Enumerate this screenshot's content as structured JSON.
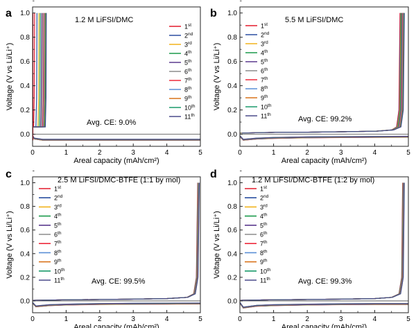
{
  "chart_data": [
    {
      "type": "line",
      "panel_label": "a",
      "annotation": "1.2 M LiFSI/DMC",
      "ce_text": "Avg. CE: 9.0%",
      "xlabel": "Areal capacity (mAh/cm²)",
      "ylabel": "Voltage (V vs Li/Li⁺)",
      "xlim": [
        0,
        5
      ],
      "ylim": [
        -0.1,
        1.05
      ],
      "xticks": [
        "0",
        "1",
        "2",
        "3",
        "4",
        "5"
      ],
      "yticks": [
        "0.0",
        "0.2",
        "0.4",
        "0.6",
        "0.8",
        "1.0"
      ],
      "legend_position": "right",
      "grid": false,
      "discharge_curve": [
        [
          0,
          -0.02
        ],
        [
          0.05,
          -0.04
        ],
        [
          0.3,
          -0.05
        ],
        [
          1,
          -0.05
        ],
        [
          2,
          -0.05
        ],
        [
          3,
          -0.05
        ],
        [
          4,
          -0.05
        ],
        [
          5,
          -0.05
        ]
      ],
      "plateau_voltage": 0.06,
      "plateau_end_capacities": [
        0.03,
        0.1,
        0.16,
        0.2,
        0.24,
        0.27,
        0.3,
        0.32,
        0.34,
        0.36,
        0.38
      ]
    },
    {
      "type": "line",
      "panel_label": "b",
      "annotation": "5.5 M LiFSI/DMC",
      "ce_text": "Avg. CE: 99.2%",
      "xlabel": "Areal capacity (mAh/cm²)",
      "ylabel": "Voltage (V vs Li/Li⁺)",
      "xlim": [
        0,
        5
      ],
      "ylim": [
        -0.1,
        1.05
      ],
      "xticks": [
        "0",
        "1",
        "2",
        "3",
        "4",
        "5"
      ],
      "yticks": [
        "0.0",
        "0.2",
        "0.4",
        "0.6",
        "0.8",
        "1.0"
      ],
      "legend_position": "top-left",
      "grid": false,
      "discharge_curve": [
        [
          0,
          -0.02
        ],
        [
          0.1,
          -0.05
        ],
        [
          0.5,
          -0.04
        ],
        [
          1,
          -0.035
        ],
        [
          2,
          -0.03
        ],
        [
          3,
          -0.028
        ],
        [
          4,
          -0.026
        ],
        [
          5,
          -0.025
        ]
      ],
      "charge_curve": [
        [
          0,
          0.01
        ],
        [
          1,
          0.015
        ],
        [
          2,
          0.017
        ],
        [
          3,
          0.02
        ],
        [
          4,
          0.025
        ],
        [
          4.5,
          0.035
        ],
        [
          4.65,
          0.06
        ],
        [
          4.72,
          0.2
        ],
        [
          4.75,
          1.0
        ]
      ],
      "charge_x_offsets": [
        0,
        0.015,
        0.03,
        0.045,
        0.06,
        0.075,
        0.09,
        0.1,
        0.11,
        0.12,
        0.13
      ]
    },
    {
      "type": "line",
      "panel_label": "c",
      "annotation": "2.5 M LiFSI/DMC-BTFE (1:1 by mol)",
      "ce_text": "Avg. CE: 99.5%",
      "xlabel": "Areal capacity (mAh/cm²)",
      "ylabel": "Voltage (V vs Li/Li⁺)",
      "xlim": [
        0,
        5
      ],
      "ylim": [
        -0.1,
        1.05
      ],
      "xticks": [
        "0",
        "1",
        "2",
        "3",
        "4",
        "5"
      ],
      "yticks": [
        "0.0",
        "0.2",
        "0.4",
        "0.6",
        "0.8",
        "1.0"
      ],
      "legend_position": "top-left",
      "grid": false,
      "discharge_curve": [
        [
          0,
          -0.02
        ],
        [
          0.1,
          -0.05
        ],
        [
          0.5,
          -0.04
        ],
        [
          1,
          -0.035
        ],
        [
          2,
          -0.03
        ],
        [
          3,
          -0.028
        ],
        [
          4,
          -0.027
        ],
        [
          5,
          -0.026
        ]
      ],
      "charge_curve": [
        [
          0,
          0.005
        ],
        [
          1,
          0.01
        ],
        [
          2,
          0.012
        ],
        [
          3,
          0.015
        ],
        [
          4,
          0.02
        ],
        [
          4.6,
          0.03
        ],
        [
          4.8,
          0.06
        ],
        [
          4.88,
          0.2
        ],
        [
          4.92,
          1.0
        ]
      ],
      "charge_x_offsets": [
        0,
        0.005,
        0.01,
        0.015,
        0.02,
        0.025,
        0.03,
        0.035,
        0.04,
        0.045,
        0.05
      ]
    },
    {
      "type": "line",
      "panel_label": "d",
      "annotation": "1.2 M LiFSI/DMC-BTFE (1:2 by mol)",
      "ce_text": "Avg. CE: 99.3%",
      "xlabel": "Areal capacity (mAh/cm²)",
      "ylabel": "Voltage (V vs Li/Li⁺)",
      "xlim": [
        0,
        5
      ],
      "ylim": [
        -0.1,
        1.05
      ],
      "xticks": [
        "0",
        "1",
        "2",
        "3",
        "4",
        "5"
      ],
      "yticks": [
        "0.0",
        "0.2",
        "0.4",
        "0.6",
        "0.8",
        "1.0"
      ],
      "legend_position": "top-left",
      "grid": false,
      "discharge_curve": [
        [
          0,
          -0.02
        ],
        [
          0.1,
          -0.06
        ],
        [
          0.5,
          -0.045
        ],
        [
          1,
          -0.04
        ],
        [
          2,
          -0.035
        ],
        [
          3,
          -0.032
        ],
        [
          4,
          -0.03
        ],
        [
          5,
          -0.03
        ]
      ],
      "charge_curve": [
        [
          0,
          0.005
        ],
        [
          1,
          0.01
        ],
        [
          2,
          0.012
        ],
        [
          3,
          0.015
        ],
        [
          4,
          0.02
        ],
        [
          4.5,
          0.03
        ],
        [
          4.72,
          0.06
        ],
        [
          4.8,
          0.2
        ],
        [
          4.83,
          1.0
        ]
      ],
      "charge_x_offsets": [
        0,
        0.005,
        0.01,
        0.015,
        0.02,
        0.025,
        0.03,
        0.035,
        0.04,
        0.045,
        0.05
      ]
    }
  ],
  "legend": {
    "series": [
      {
        "num": "1",
        "sup": "st",
        "color": "#e41a2c"
      },
      {
        "num": "2",
        "sup": "nd",
        "color": "#2b4fa0"
      },
      {
        "num": "3",
        "sup": "rd",
        "color": "#f2b21a"
      },
      {
        "num": "4",
        "sup": "th",
        "color": "#1a9a4a"
      },
      {
        "num": "5",
        "sup": "th",
        "color": "#5b3a8e"
      },
      {
        "num": "6",
        "sup": "th",
        "color": "#8c8c8c"
      },
      {
        "num": "7",
        "sup": "th",
        "color": "#ee2a3c"
      },
      {
        "num": "8",
        "sup": "th",
        "color": "#5a8fd6"
      },
      {
        "num": "9",
        "sup": "th",
        "color": "#d9731a"
      },
      {
        "num": "10",
        "sup": "th",
        "color": "#1a9a6a"
      },
      {
        "num": "11",
        "sup": "th",
        "color": "#4a4a8a"
      }
    ]
  }
}
